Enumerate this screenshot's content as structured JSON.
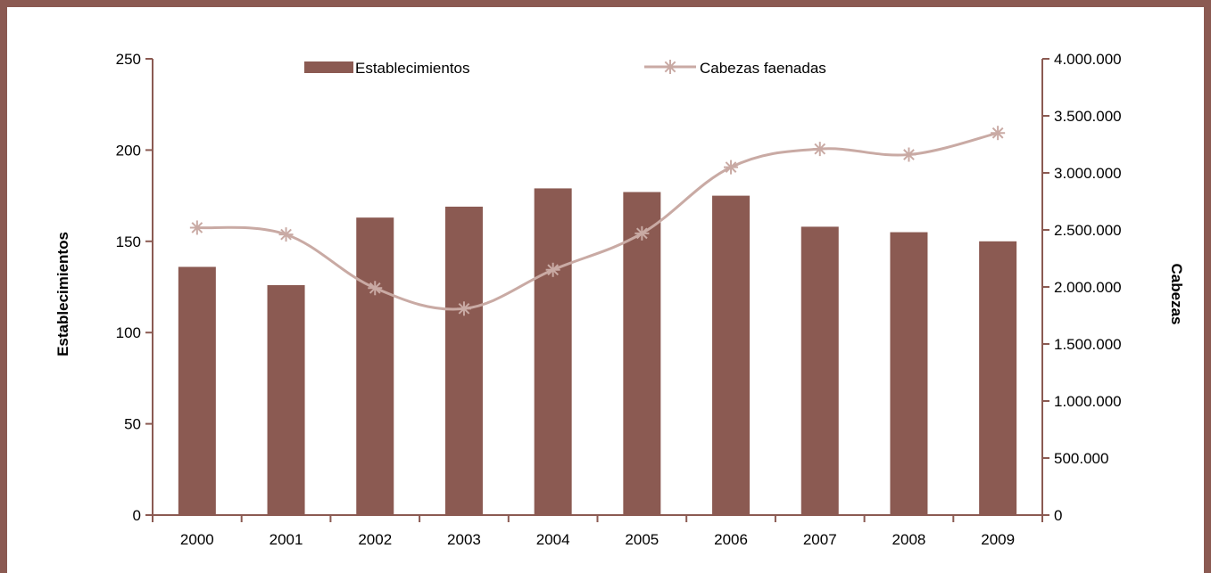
{
  "chart_data": {
    "type": "bar+line",
    "categories": [
      "2000",
      "2001",
      "2002",
      "2003",
      "2004",
      "2005",
      "2006",
      "2007",
      "2008",
      "2009"
    ],
    "series": [
      {
        "name": "Establecimientos",
        "type": "bar",
        "axis": "left",
        "color": "#8b5a52",
        "values": [
          136,
          126,
          163,
          169,
          179,
          177,
          175,
          158,
          155,
          150
        ]
      },
      {
        "name": "Cabezas faenadas",
        "type": "line",
        "axis": "right",
        "color": "#c9aaa4",
        "marker": "asterisk",
        "values": [
          2520000,
          2460000,
          1990000,
          1810000,
          2150000,
          2470000,
          3050000,
          3210000,
          3160000,
          3350000
        ]
      }
    ],
    "ylabel": "Establecimientos",
    "y2label": "Cabezas",
    "ylim": [
      0,
      250
    ],
    "y2lim": [
      0,
      4000000
    ],
    "yticks": [
      "0",
      "50",
      "100",
      "150",
      "200",
      "250"
    ],
    "y2ticks": [
      "0",
      "500.000",
      "1.000.000",
      "1.500.000",
      "2.000.000",
      "2.500.000",
      "3.000.000",
      "3.500.000",
      "4.000.000"
    ],
    "legend_position": "top",
    "grid": false,
    "axis_color": "#8b5a52",
    "frame_color": "#8b5a52"
  }
}
